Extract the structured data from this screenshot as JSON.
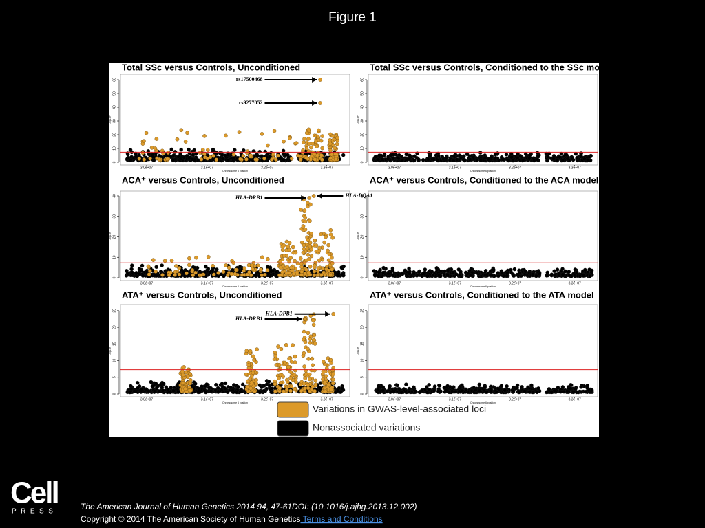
{
  "header": {
    "title": "Figure 1"
  },
  "figure": {
    "panels": [
      {
        "title": "Total SSc versus Controls, Unconditioned",
        "ylim": [
          0,
          62
        ],
        "yticks": [
          0,
          10,
          20,
          30,
          40,
          50,
          60
        ],
        "xticks": [
          "3.0e+07",
          "3.1e+07",
          "3.2e+07",
          "3.3e+07"
        ],
        "threshold": 7.3,
        "ylabel": "-log10P",
        "xlabel": "Chromosome 6 position",
        "annotations": [
          {
            "label": "rs17500468",
            "value": 60
          },
          {
            "label": "rs9277052",
            "value": 43
          }
        ]
      },
      {
        "title": "Total SSc versus Controls, Conditioned to the SSc model",
        "ylim": [
          0,
          62
        ],
        "yticks": [
          0,
          10,
          20,
          30,
          40,
          50,
          60
        ],
        "xticks": [
          "3.0e+07",
          "3.1e+07",
          "3.2e+07",
          "3.3e+07"
        ],
        "threshold": 7.3,
        "ylabel": "-log10P",
        "xlabel": "Chromosome 6 position",
        "annotations": []
      },
      {
        "title": "ACA⁺ versus Controls, Unconditioned",
        "ylim": [
          0,
          41
        ],
        "yticks": [
          0,
          10,
          20,
          30,
          40
        ],
        "xticks": [
          "3.0e+07",
          "3.1e+07",
          "3.2e+07",
          "3.3e+07"
        ],
        "threshold": 7.3,
        "ylabel": "-log10P",
        "xlabel": "Chromosome 6 position",
        "annotations": [
          {
            "label": "HLA-DRB1",
            "value": 39
          },
          {
            "label": "HLA-DQA1",
            "value": 40
          }
        ]
      },
      {
        "title": "ACA⁺ versus Controls, Conditioned to the ACA model",
        "ylim": [
          0,
          41
        ],
        "yticks": [
          0,
          10,
          20,
          30,
          40
        ],
        "xticks": [
          "3.0e+07",
          "3.1e+07",
          "3.2e+07",
          "3.3e+07"
        ],
        "threshold": 7.3,
        "ylabel": "-log10P",
        "xlabel": "Chromosome 6 position",
        "annotations": []
      },
      {
        "title": "ATA⁺ versus Controls, Unconditioned",
        "ylim": [
          0,
          26
        ],
        "yticks": [
          0,
          5,
          10,
          15,
          20,
          25
        ],
        "xticks": [
          "3.0e+07",
          "3.1e+07",
          "3.2e+07",
          "3.3e+07"
        ],
        "threshold": 7.3,
        "ylabel": "-log10P",
        "xlabel": "Chromosome 6 position",
        "annotations": [
          {
            "label": "HLA-DRB1",
            "value": 22.5
          },
          {
            "label": "HLA-DPB1",
            "value": 24
          }
        ]
      },
      {
        "title": "ATA⁺ versus Controls, Conditioned to the ATA model",
        "ylim": [
          0,
          26
        ],
        "yticks": [
          0,
          5,
          10,
          15,
          20,
          25
        ],
        "xticks": [
          "3.0e+07",
          "3.1e+07",
          "3.2e+07",
          "3.3e+07"
        ],
        "threshold": 7.3,
        "ylabel": "-log10P",
        "xlabel": "Chromosome 6 position",
        "annotations": []
      }
    ],
    "legend": [
      {
        "label": "Variations in GWAS-level-associated loci",
        "color": "#dc9a2a"
      },
      {
        "label": "Nonassociated variations",
        "color": "#000000"
      }
    ]
  },
  "logo": {
    "name": "Cell",
    "sub": "PRESS"
  },
  "footer": {
    "citation": "The American Journal of Human Genetics 2014 94, 47-61DOI: (10.1016/j.ajhg.2013.12.002)",
    "copyright": "Copyright © 2014 The American Society of Human Genetics",
    "link": " Terms and Conditions"
  }
}
